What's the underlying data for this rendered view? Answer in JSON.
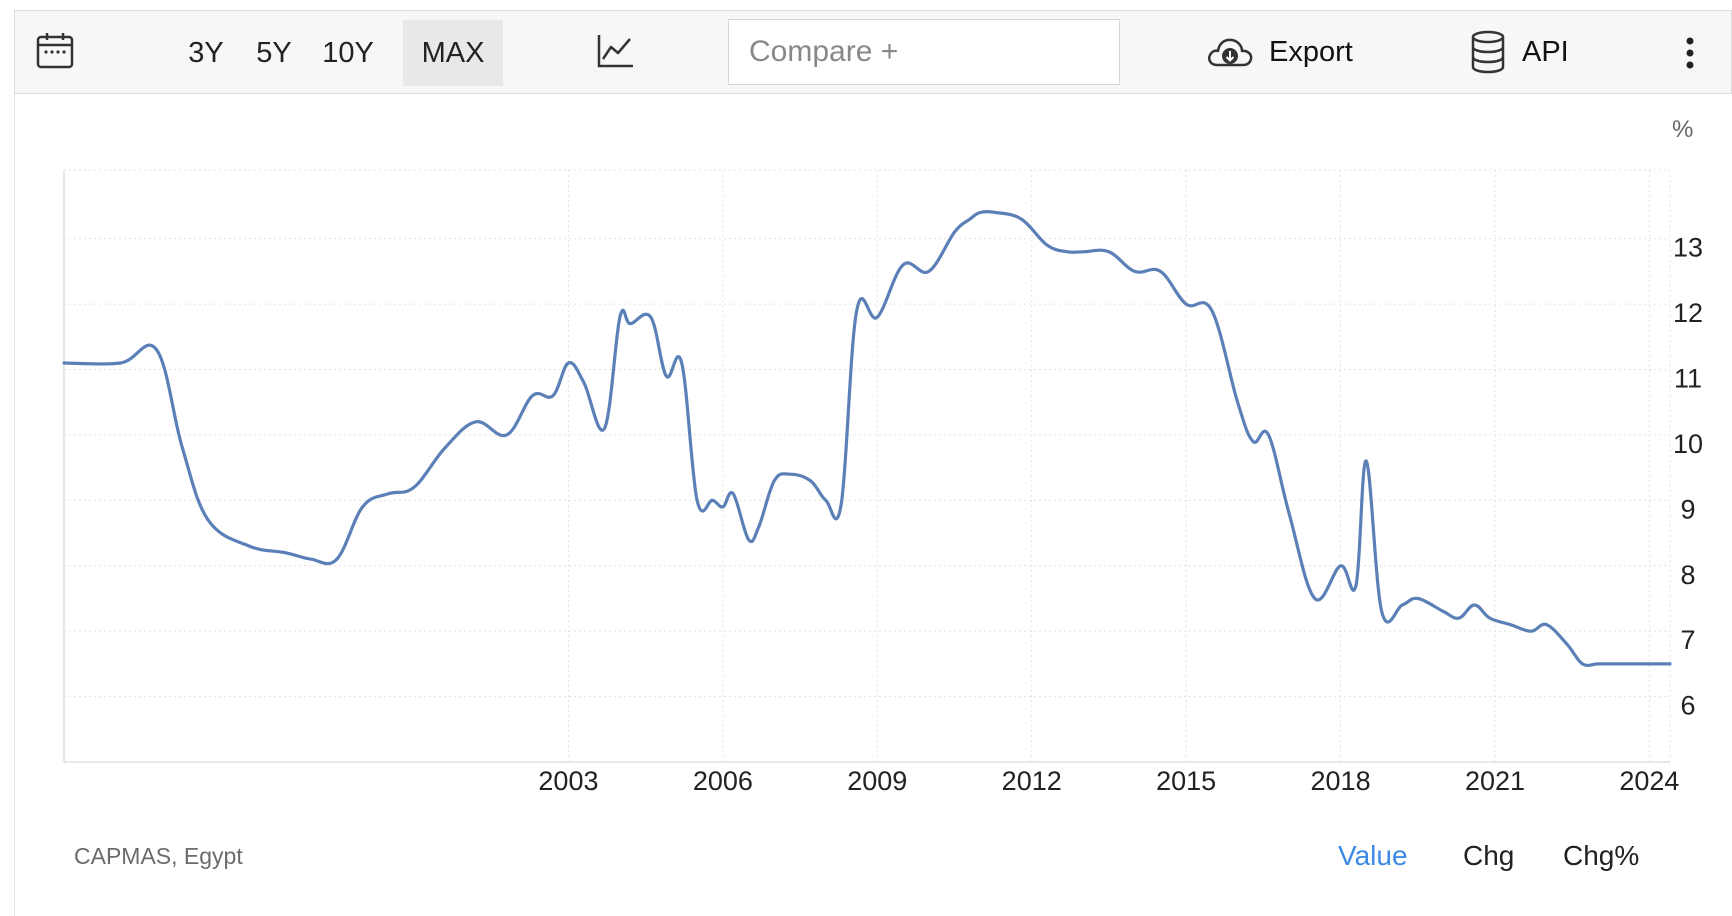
{
  "toolbar": {
    "calendar_icon": "calendar-icon",
    "ranges": [
      "3Y",
      "5Y",
      "10Y",
      "MAX"
    ],
    "active_range": "MAX",
    "chart_type_icon": "line-chart-icon",
    "compare_placeholder": "Compare +",
    "export_label": "Export",
    "export_icon": "cloud-download-icon",
    "api_label": "API",
    "api_icon": "database-icon",
    "more_icon": "vertical-dots-icon"
  },
  "chart_data": {
    "type": "line",
    "unit_label": "%",
    "x_tick_labels": [
      "2003",
      "2006",
      "2009",
      "2012",
      "2015",
      "2018",
      "2021",
      "2024"
    ],
    "y_tick_labels": [
      "6",
      "7",
      "8",
      "9",
      "10",
      "11",
      "12",
      "13"
    ],
    "xlim": [
      1993.2,
      2024.4
    ],
    "ylim": [
      5,
      14.05
    ],
    "grid": true,
    "line_color": "#5b80b8",
    "series": [
      {
        "x": [
          1993.2,
          1994.3,
          1995.0,
          1995.5,
          1996.0,
          1996.8,
          1997.5,
          1998.0,
          1998.5,
          1999.0,
          1999.5,
          2000.0,
          2000.6,
          2001.2,
          2001.8,
          2002.3,
          2002.7,
          2003.0,
          2003.3,
          2003.7,
          2004.0,
          2004.2,
          2004.6,
          2004.9,
          2005.2,
          2005.5,
          2005.8,
          2006.0,
          2006.2,
          2006.5,
          2006.7,
          2007.0,
          2007.3,
          2007.7,
          2008.0,
          2008.3,
          2008.6,
          2009.0,
          2009.5,
          2010.0,
          2010.5,
          2010.8,
          2011.0,
          2011.3,
          2011.8,
          2012.3,
          2012.7,
          2013.0,
          2013.5,
          2014.0,
          2014.5,
          2015.0,
          2015.5,
          2016.0,
          2016.3,
          2016.6,
          2017.0,
          2017.5,
          2018.0,
          2018.3,
          2018.5,
          2018.8,
          2019.2,
          2019.5,
          2020.0,
          2020.3,
          2020.6,
          2020.9,
          2021.3,
          2021.7,
          2022.0,
          2022.4,
          2022.7,
          2023.0,
          2023.4,
          2023.8,
          2024.1,
          2024.4
        ],
        "values": [
          11.1,
          11.1,
          11.3,
          9.8,
          8.7,
          8.3,
          8.2,
          8.1,
          8.1,
          8.9,
          9.1,
          9.2,
          9.8,
          10.2,
          10.0,
          10.6,
          10.6,
          11.1,
          10.8,
          10.1,
          11.8,
          11.7,
          11.8,
          10.9,
          11.1,
          9.0,
          9.0,
          8.9,
          9.1,
          8.4,
          8.6,
          9.3,
          9.4,
          9.3,
          9.0,
          8.95,
          11.9,
          11.8,
          12.6,
          12.5,
          13.1,
          13.3,
          13.4,
          13.4,
          13.3,
          12.9,
          12.8,
          12.8,
          12.8,
          12.5,
          12.5,
          12.0,
          11.9,
          10.5,
          9.9,
          10.0,
          8.8,
          7.5,
          8.0,
          7.7,
          9.6,
          7.3,
          7.4,
          7.5,
          7.3,
          7.2,
          7.4,
          7.2,
          7.1,
          7.0,
          7.1,
          6.8,
          6.5,
          6.5,
          6.5,
          6.5,
          6.5,
          6.5
        ],
        "x_note": "",
        "values_note": ""
      }
    ]
  },
  "footer": {
    "source": "CAPMAS, Egypt",
    "modes": [
      "Value",
      "Chg",
      "Chg%"
    ],
    "active_mode": "Value"
  }
}
